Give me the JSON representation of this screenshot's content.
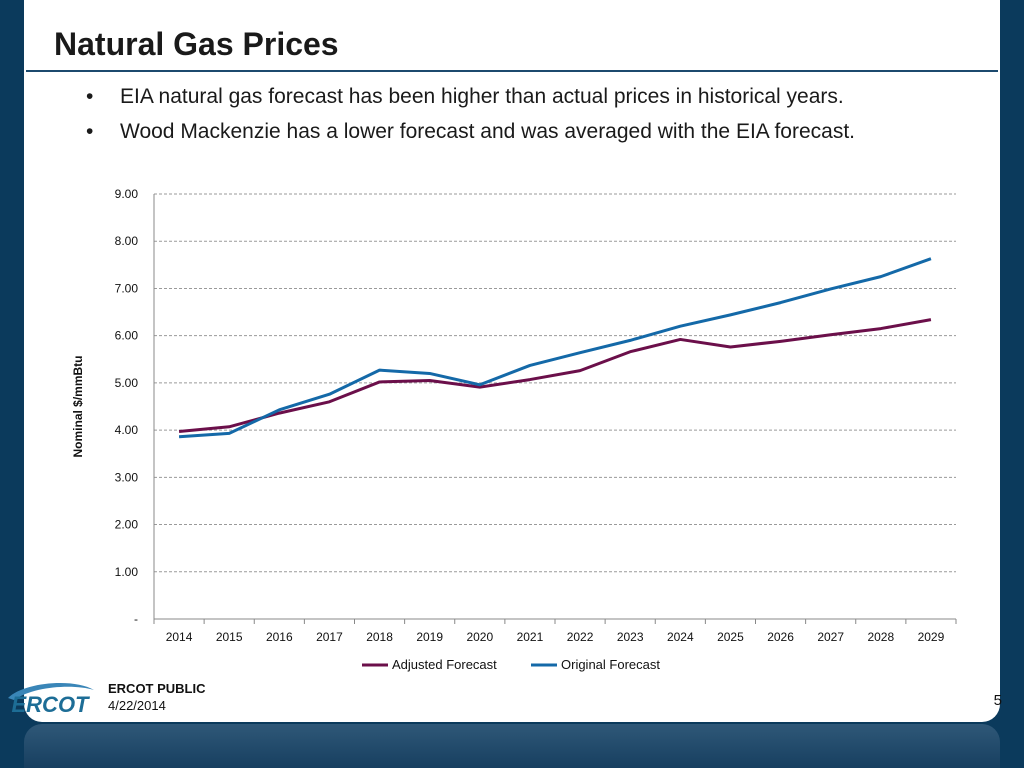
{
  "slide": {
    "title": "Natural Gas Prices",
    "bullets": [
      "EIA natural gas forecast has been higher than actual prices in historical years.",
      "Wood Mackenzie has a lower forecast and was averaged with the EIA forecast."
    ],
    "footer": {
      "logo_text": "ERCOT",
      "classification": "ERCOT PUBLIC",
      "date": "4/22/2014",
      "page_number": "5"
    }
  },
  "chart_data": {
    "type": "line",
    "title": "",
    "xlabel": "",
    "ylabel": "Nominal $/mmBtu",
    "categories": [
      "2014",
      "2015",
      "2016",
      "2017",
      "2018",
      "2019",
      "2020",
      "2021",
      "2022",
      "2023",
      "2024",
      "2025",
      "2026",
      "2027",
      "2028",
      "2029"
    ],
    "ylim": [
      0,
      9
    ],
    "yticks": [
      0,
      1,
      2,
      3,
      4,
      5,
      6,
      7,
      8,
      9
    ],
    "ytick_labels": [
      "-",
      "1.00",
      "2.00",
      "3.00",
      "4.00",
      "5.00",
      "6.00",
      "7.00",
      "8.00",
      "9.00"
    ],
    "grid": true,
    "legend_position": "bottom",
    "series": [
      {
        "name": "Adjusted Forecast",
        "color": "#6b0f4a",
        "values": [
          3.97,
          4.07,
          4.36,
          4.6,
          5.02,
          5.05,
          4.91,
          5.07,
          5.26,
          5.66,
          5.92,
          5.76,
          5.88,
          6.02,
          6.15,
          6.34
        ]
      },
      {
        "name": "Original Forecast",
        "color": "#1469a8",
        "values": [
          3.86,
          3.93,
          4.43,
          4.76,
          5.27,
          5.2,
          4.96,
          5.37,
          5.64,
          5.9,
          6.2,
          6.44,
          6.7,
          6.99,
          7.25,
          7.63
        ]
      }
    ]
  }
}
